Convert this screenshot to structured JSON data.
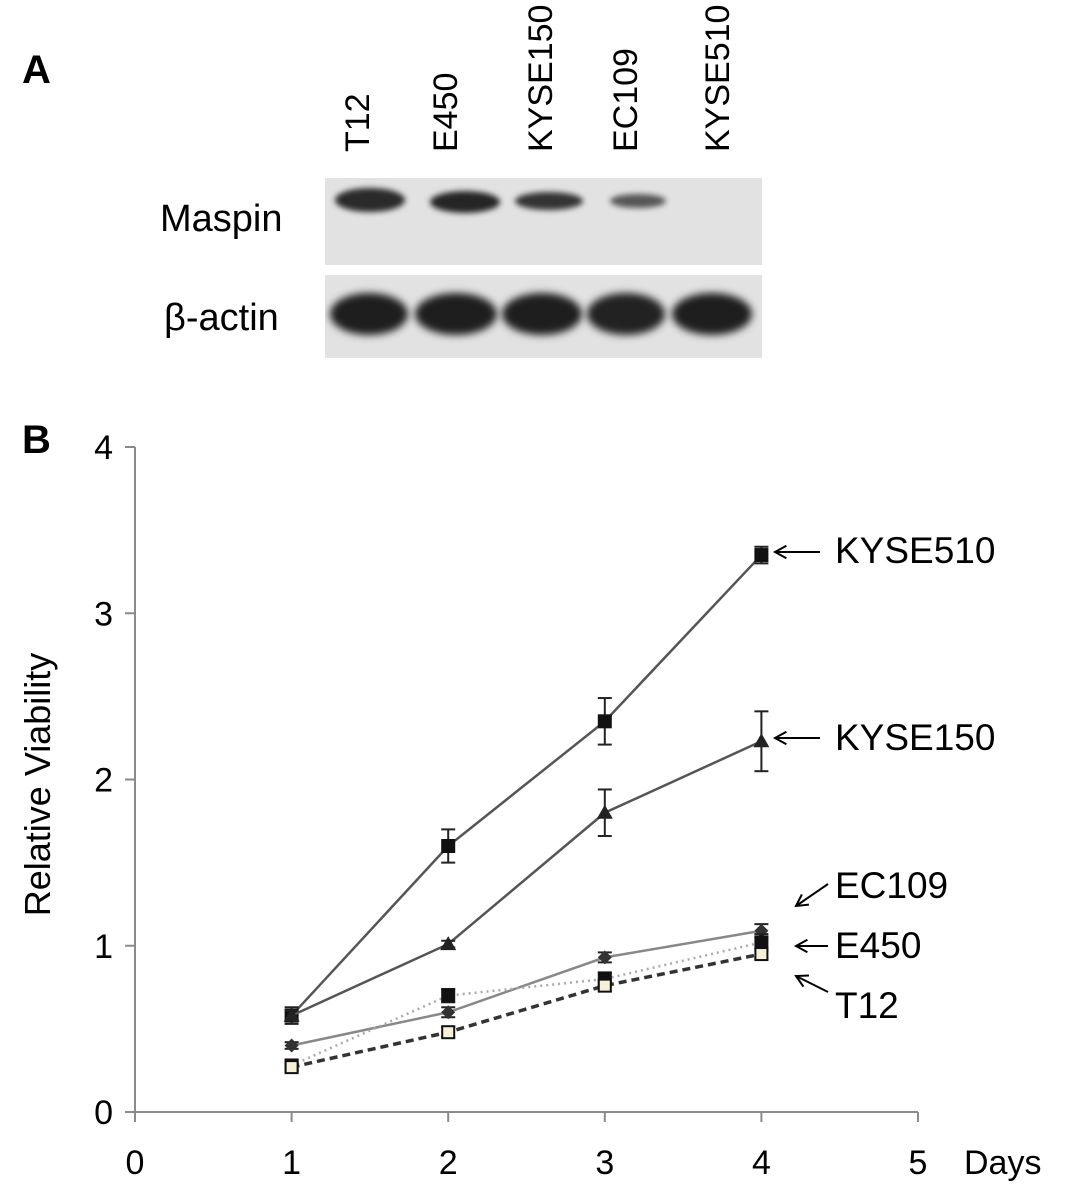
{
  "panel_a": {
    "letter": "A",
    "lanes": [
      "T12",
      "E450",
      "KYSE150",
      "EC109",
      "KYSE510"
    ],
    "rows": [
      "Maspin",
      "β-actin"
    ]
  },
  "panel_b": {
    "letter": "B"
  },
  "chart_data": {
    "type": "line",
    "xlabel": "Days",
    "ylabel": "Relative Viability",
    "xlim": [
      0,
      5
    ],
    "ylim": [
      0,
      4
    ],
    "x_ticks": [
      "0",
      "1",
      "2",
      "3",
      "4",
      "5"
    ],
    "y_ticks": [
      "0",
      "1",
      "2",
      "3",
      "4"
    ],
    "x": [
      1,
      2,
      3,
      4
    ],
    "series": [
      {
        "name": "KYSE510",
        "values": [
          0.58,
          1.6,
          2.35,
          3.35
        ],
        "errors": [
          0.05,
          0.1,
          0.14,
          0.05
        ],
        "marker": "square-filled",
        "line": "solid",
        "color": "#555555"
      },
      {
        "name": "KYSE150",
        "values": [
          0.58,
          1.01,
          1.8,
          2.23
        ],
        "errors": [
          0.03,
          0.02,
          0.14,
          0.18
        ],
        "marker": "triangle-filled",
        "line": "solid",
        "color": "#555555"
      },
      {
        "name": "EC109",
        "values": [
          0.4,
          0.6,
          0.93,
          1.09
        ],
        "errors": [
          0.02,
          0.03,
          0.03,
          0.04
        ],
        "marker": "diamond-filled",
        "line": "solid",
        "color": "#888888"
      },
      {
        "name": "E450",
        "values": [
          0.28,
          0.7,
          0.8,
          1.02
        ],
        "errors": [
          0.03,
          0.04,
          0.04,
          0.05
        ],
        "marker": "square-filled",
        "line": "dotted",
        "color": "#aaaaaa"
      },
      {
        "name": "T12",
        "values": [
          0.27,
          0.48,
          0.76,
          0.95
        ],
        "errors": [
          0.02,
          0.03,
          0.03,
          0.03
        ],
        "marker": "square-open",
        "line": "dashed",
        "color": "#333333"
      }
    ],
    "annotations": [
      {
        "label": "KYSE510",
        "series": "KYSE510"
      },
      {
        "label": "KYSE150",
        "series": "KYSE150"
      },
      {
        "label": "EC109",
        "series": "EC109"
      },
      {
        "label": "E450",
        "series": "E450"
      },
      {
        "label": "T12",
        "series": "T12"
      }
    ]
  }
}
